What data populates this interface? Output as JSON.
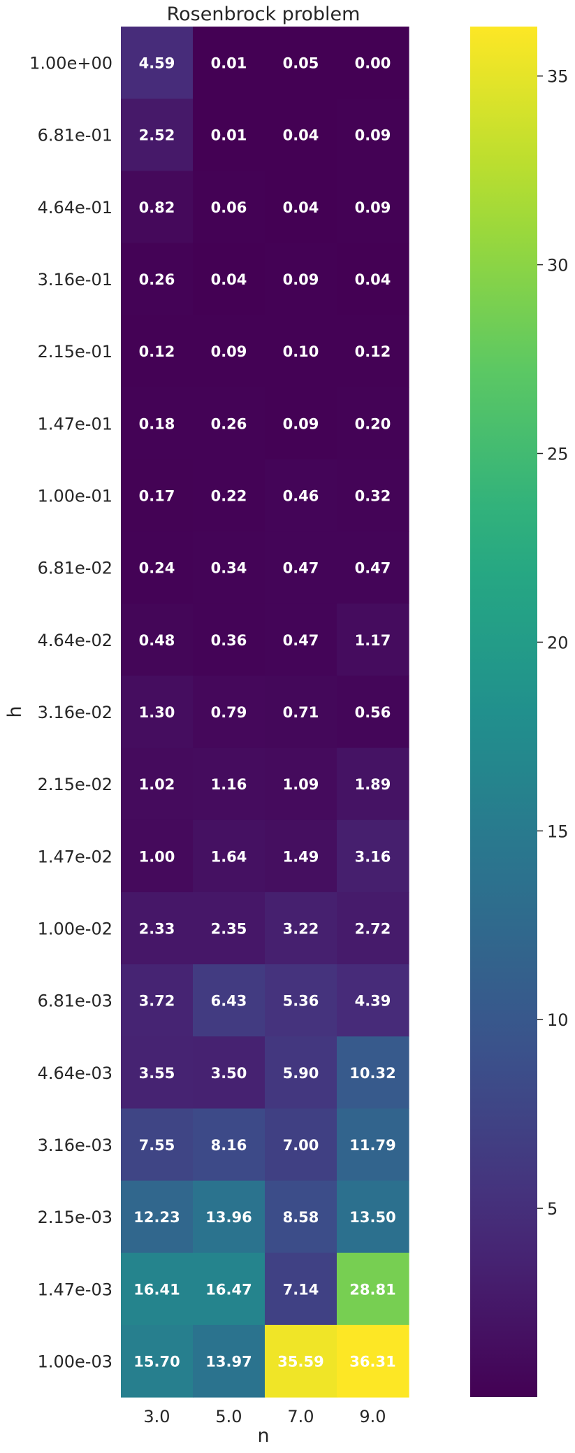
{
  "chart_data": {
    "type": "heatmap",
    "title": "Rosenbrock problem",
    "xlabel": "n",
    "ylabel": "h",
    "x_categories": [
      "3.0",
      "5.0",
      "7.0",
      "9.0"
    ],
    "y_categories": [
      "1.00e+00",
      "6.81e-01",
      "4.64e-01",
      "3.16e-01",
      "2.15e-01",
      "1.47e-01",
      "1.00e-01",
      "6.81e-02",
      "4.64e-02",
      "3.16e-02",
      "2.15e-02",
      "1.47e-02",
      "1.00e-02",
      "6.81e-03",
      "4.64e-03",
      "3.16e-03",
      "2.15e-03",
      "1.47e-03",
      "1.00e-03"
    ],
    "values": [
      [
        4.59,
        0.01,
        0.05,
        0.0
      ],
      [
        2.52,
        0.01,
        0.04,
        0.09
      ],
      [
        0.82,
        0.06,
        0.04,
        0.09
      ],
      [
        0.26,
        0.04,
        0.09,
        0.04
      ],
      [
        0.12,
        0.09,
        0.1,
        0.12
      ],
      [
        0.18,
        0.26,
        0.09,
        0.2
      ],
      [
        0.17,
        0.22,
        0.46,
        0.32
      ],
      [
        0.24,
        0.34,
        0.47,
        0.47
      ],
      [
        0.48,
        0.36,
        0.47,
        1.17
      ],
      [
        1.3,
        0.79,
        0.71,
        0.56
      ],
      [
        1.02,
        1.16,
        1.09,
        1.89
      ],
      [
        1.0,
        1.64,
        1.49,
        3.16
      ],
      [
        2.33,
        2.35,
        3.22,
        2.72
      ],
      [
        3.72,
        6.43,
        5.36,
        4.39
      ],
      [
        3.55,
        3.5,
        5.9,
        10.32
      ],
      [
        7.55,
        8.16,
        7.0,
        11.79
      ],
      [
        12.23,
        13.96,
        8.58,
        13.5
      ],
      [
        16.41,
        16.47,
        7.14,
        28.81
      ],
      [
        15.7,
        13.97,
        35.59,
        36.31
      ]
    ],
    "labels": [
      [
        "4.59",
        "0.01",
        "0.05",
        "0.00"
      ],
      [
        "2.52",
        "0.01",
        "0.04",
        "0.09"
      ],
      [
        "0.82",
        "0.06",
        "0.04",
        "0.09"
      ],
      [
        "0.26",
        "0.04",
        "0.09",
        "0.04"
      ],
      [
        "0.12",
        "0.09",
        "0.10",
        "0.12"
      ],
      [
        "0.18",
        "0.26",
        "0.09",
        "0.20"
      ],
      [
        "0.17",
        "0.22",
        "0.46",
        "0.32"
      ],
      [
        "0.24",
        "0.34",
        "0.47",
        "0.47"
      ],
      [
        "0.48",
        "0.36",
        "0.47",
        "1.17"
      ],
      [
        "1.30",
        "0.79",
        "0.71",
        "0.56"
      ],
      [
        "1.02",
        "1.16",
        "1.09",
        "1.89"
      ],
      [
        "1.00",
        "1.64",
        "1.49",
        "3.16"
      ],
      [
        "2.33",
        "2.35",
        "3.22",
        "2.72"
      ],
      [
        "3.72",
        "6.43",
        "5.36",
        "4.39"
      ],
      [
        "3.55",
        "3.50",
        "5.90",
        "10.32"
      ],
      [
        "7.55",
        "8.16",
        "7.00",
        "11.79"
      ],
      [
        "12.23",
        "13.96",
        "8.58",
        "13.50"
      ],
      [
        "16.41",
        "16.47",
        "7.14",
        "28.81"
      ],
      [
        "15.70",
        "13.97",
        "35.59",
        "36.31"
      ]
    ],
    "colormap": "viridis",
    "vmin": 0.0,
    "vmax": 36.31,
    "colorbar": {
      "ticks": [
        5,
        10,
        15,
        20,
        25,
        30,
        35
      ],
      "tick_labels": [
        "5",
        "10",
        "15",
        "20",
        "25",
        "30",
        "35"
      ],
      "placement": "right"
    },
    "grid": false
  }
}
